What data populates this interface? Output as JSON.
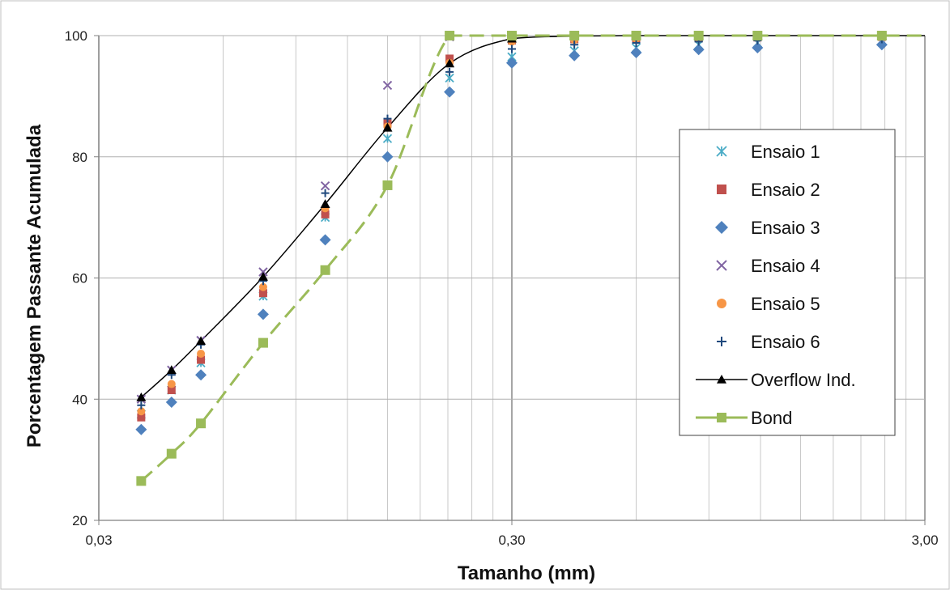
{
  "chart_data": {
    "type": "scatter",
    "xlabel": "Tamanho (mm)",
    "ylabel": "Porcentagem Passante Acumulada",
    "x_scale": "log",
    "xlim": [
      0.03,
      3.0
    ],
    "ylim": [
      20,
      100
    ],
    "x_ticks": [
      0.03,
      0.3,
      3.0
    ],
    "x_tick_labels": [
      "0,03",
      "0,30",
      "3,00"
    ],
    "y_ticks": [
      20,
      40,
      60,
      80,
      100
    ],
    "y_tick_labels": [
      "20",
      "40",
      "60",
      "80",
      "100"
    ],
    "grid": true,
    "legend_position": "right",
    "x": [
      0.038,
      0.045,
      0.053,
      0.075,
      0.106,
      0.15,
      0.212,
      0.3,
      0.425,
      0.6,
      0.85,
      1.18,
      2.36
    ],
    "series": [
      {
        "name": "Ensaio 1",
        "marker": "asterisk",
        "color": "#4bacc6",
        "values": [
          37.5,
          41.5,
          46.0,
          57.0,
          70.0,
          83.0,
          93.0,
          96.5,
          97.5,
          98.0,
          98.5,
          98.8,
          99.2
        ]
      },
      {
        "name": "Ensaio 2",
        "marker": "square",
        "color": "#c0504d",
        "values": [
          37.0,
          41.5,
          46.5,
          57.5,
          70.5,
          85.5,
          96.2,
          99.2,
          99.4,
          99.5,
          99.6,
          99.7,
          99.8
        ]
      },
      {
        "name": "Ensaio 3",
        "marker": "diamond",
        "color": "#4f81bd",
        "values": [
          35.0,
          39.5,
          44.0,
          54.0,
          66.3,
          80.0,
          90.7,
          95.5,
          96.7,
          97.2,
          97.7,
          98.0,
          98.5
        ]
      },
      {
        "name": "Ensaio 4",
        "marker": "x",
        "color": "#8064a2",
        "values": [
          40.0,
          44.8,
          49.7,
          61.0,
          75.2,
          91.8,
          99.8,
          99.9,
          100,
          100,
          100,
          100,
          100
        ]
      },
      {
        "name": "Ensaio 5",
        "marker": "circle",
        "color": "#f79646",
        "values": [
          38.0,
          42.5,
          47.5,
          58.5,
          71.5,
          85.0,
          95.5,
          99.0,
          99.3,
          99.5,
          99.6,
          99.7,
          99.8
        ]
      },
      {
        "name": "Ensaio 6",
        "marker": "plus",
        "color": "#1f497d",
        "values": [
          39.0,
          44.0,
          49.0,
          59.5,
          74.0,
          86.3,
          94.0,
          97.8,
          98.5,
          98.8,
          99.0,
          99.2,
          99.4
        ]
      },
      {
        "name": "Overflow Ind.",
        "marker": "triangle",
        "line": "solid",
        "color": "#000000",
        "values": [
          40.3,
          44.8,
          49.6,
          60.2,
          72.2,
          84.8,
          95.4,
          99.5,
          99.9,
          100,
          100,
          100,
          100
        ]
      },
      {
        "name": "Bond",
        "marker": "square",
        "line": "dashed",
        "color": "#9bbb59",
        "values": [
          26.5,
          31.0,
          36.0,
          49.3,
          61.3,
          75.3,
          100,
          100,
          100,
          100,
          100,
          100,
          100
        ]
      }
    ]
  }
}
